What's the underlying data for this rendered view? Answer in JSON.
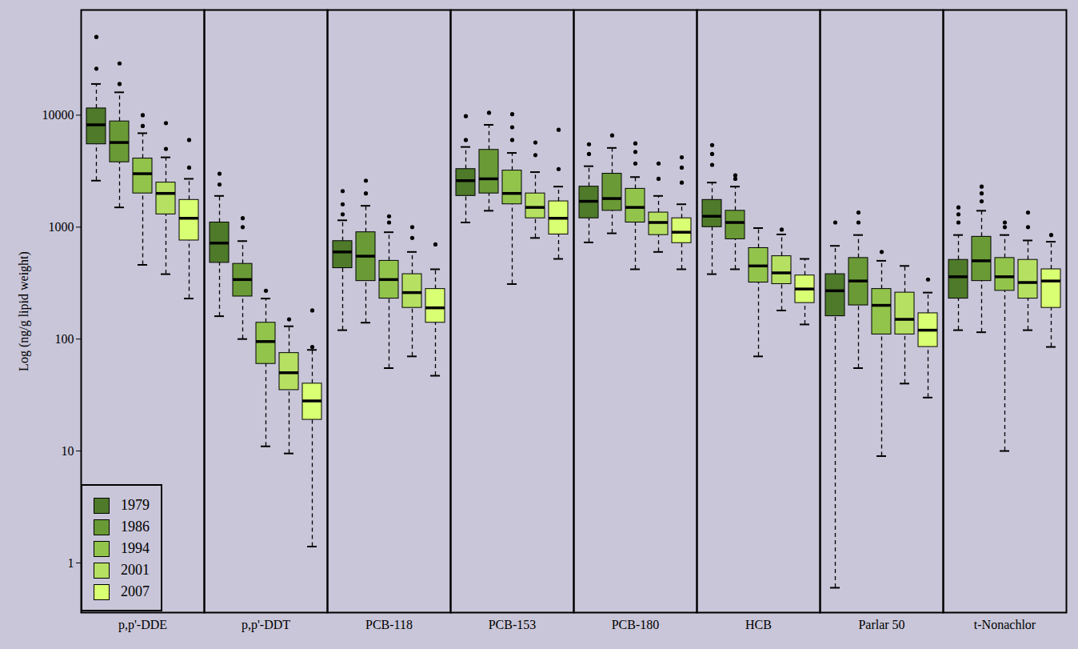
{
  "chart_data": {
    "type": "box",
    "y_label": "Log (ng/g lipid weight)",
    "log": "y",
    "legend": "lower left",
    "ylim": [
      0.36,
      87000
    ],
    "yticks": [
      1,
      10,
      100,
      1000,
      10000
    ],
    "categories": [
      "p,p'-DDE",
      "p,p'-DDT",
      "PCB-118",
      "PCB-153",
      "PCB-180",
      "HCB",
      "Parlar 50",
      "t-Nonachlor"
    ],
    "series": [
      {
        "name": "1979",
        "color": "#4e7a2a",
        "low": [
          2600,
          160,
          120,
          1100,
          730,
          380,
          0.6,
          120
        ],
        "q1": [
          5500,
          480,
          430,
          1900,
          1200,
          1000,
          160,
          230
        ],
        "median": [
          8200,
          720,
          600,
          2600,
          1700,
          1250,
          270,
          360
        ],
        "q3": [
          11500,
          1100,
          750,
          3300,
          2300,
          1750,
          380,
          510
        ],
        "high": [
          19000,
          1900,
          1150,
          5200,
          3500,
          2500,
          680,
          850
        ],
        "outliers": [
          [
            26000,
            50000
          ],
          [
            2400,
            3000
          ],
          [
            1300,
            1600,
            2100
          ],
          [
            6000,
            9800
          ],
          [
            4500,
            5500
          ],
          [
            3600,
            4500,
            5400
          ],
          [
            1100
          ],
          [
            1100,
            1300,
            1500
          ]
        ]
      },
      {
        "name": "1986",
        "color": "#6a9a36",
        "low": [
          1500,
          100,
          140,
          1400,
          880,
          420,
          55,
          115
        ],
        "q1": [
          3800,
          240,
          330,
          2000,
          1400,
          780,
          200,
          330
        ],
        "median": [
          5700,
          340,
          550,
          2700,
          1800,
          1100,
          330,
          500
        ],
        "q3": [
          8800,
          470,
          900,
          4900,
          3000,
          1400,
          530,
          820
        ],
        "high": [
          16000,
          750,
          1550,
          8200,
          5100,
          2300,
          850,
          1400
        ],
        "outliers": [
          [
            19000,
            29000
          ],
          [
            1000,
            1200
          ],
          [
            2000,
            2600
          ],
          [
            10500
          ],
          [
            6600
          ],
          [
            2700,
            2900
          ],
          [
            1100,
            1350
          ],
          [
            1700,
            2000,
            2300
          ]
        ]
      },
      {
        "name": "1994",
        "color": "#92c44c",
        "low": [
          460,
          11,
          55,
          310,
          420,
          70,
          9,
          10
        ],
        "q1": [
          2000,
          60,
          230,
          1600,
          1100,
          320,
          110,
          270
        ],
        "median": [
          3000,
          95,
          340,
          2000,
          1500,
          450,
          200,
          360
        ],
        "q3": [
          4100,
          140,
          500,
          3200,
          2200,
          650,
          280,
          530
        ],
        "high": [
          6900,
          230,
          900,
          4600,
          2800,
          980,
          500,
          850
        ],
        "outliers": [
          [
            8000,
            10000
          ],
          [
            270
          ],
          [
            1100,
            1250
          ],
          [
            6000,
            7800,
            10200
          ],
          [
            3700,
            4700,
            5600
          ],
          [],
          [
            600
          ],
          [
            1000,
            1100
          ]
        ]
      },
      {
        "name": "2001",
        "color": "#b6e062",
        "low": [
          380,
          9.5,
          70,
          800,
          600,
          180,
          40,
          120
        ],
        "q1": [
          1300,
          35,
          190,
          1200,
          850,
          310,
          110,
          230
        ],
        "median": [
          2000,
          50,
          260,
          1500,
          1100,
          390,
          150,
          320
        ],
        "q3": [
          2500,
          75,
          380,
          2000,
          1350,
          550,
          260,
          510
        ],
        "high": [
          4200,
          130,
          600,
          3100,
          1900,
          860,
          450,
          760
        ],
        "outliers": [
          [
            5000,
            8500
          ],
          [
            150
          ],
          [
            800,
            1000
          ],
          [
            4400,
            5700
          ],
          [
            2700,
            3700
          ],
          [
            950
          ],
          [],
          [
            1000,
            1350
          ]
        ]
      },
      {
        "name": "2007",
        "color": "#d9ff72",
        "low": [
          230,
          1.4,
          47,
          520,
          420,
          135,
          30,
          85
        ],
        "q1": [
          760,
          19,
          140,
          860,
          720,
          210,
          85,
          190
        ],
        "median": [
          1200,
          28,
          190,
          1200,
          900,
          280,
          120,
          330
        ],
        "q3": [
          1750,
          40,
          280,
          1700,
          1200,
          370,
          170,
          420
        ],
        "high": [
          2700,
          80,
          420,
          2300,
          1600,
          520,
          260,
          740
        ],
        "outliers": [
          [
            3400,
            6000
          ],
          [
            85,
            180
          ],
          [
            700
          ],
          [
            3300,
            7400
          ],
          [
            2500,
            3400,
            4200
          ],
          [],
          [
            340
          ],
          [
            850
          ]
        ]
      }
    ]
  }
}
